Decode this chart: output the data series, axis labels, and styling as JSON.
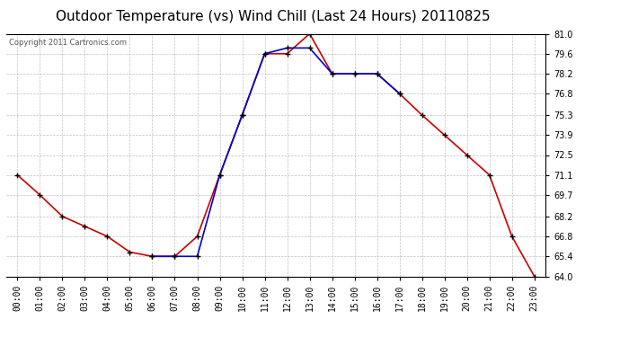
{
  "title": "Outdoor Temperature (vs) Wind Chill (Last 24 Hours) 20110825",
  "copyright": "Copyright 2011 Cartronics.com",
  "hours": [
    "00:00",
    "01:00",
    "02:00",
    "03:00",
    "04:00",
    "05:00",
    "06:00",
    "07:00",
    "08:00",
    "09:00",
    "10:00",
    "11:00",
    "12:00",
    "13:00",
    "14:00",
    "15:00",
    "16:00",
    "17:00",
    "18:00",
    "19:00",
    "20:00",
    "21:00",
    "22:00",
    "23:00"
  ],
  "outdoor_temp": [
    71.1,
    69.7,
    68.2,
    67.5,
    66.8,
    65.7,
    65.4,
    65.4,
    66.8,
    71.1,
    75.3,
    79.6,
    79.6,
    81.0,
    78.2,
    78.2,
    78.2,
    76.8,
    75.3,
    73.9,
    72.5,
    71.1,
    66.8,
    64.0
  ],
  "wind_chill": [
    null,
    null,
    null,
    null,
    null,
    null,
    65.4,
    65.4,
    65.4,
    71.1,
    75.3,
    79.6,
    80.0,
    80.0,
    78.2,
    78.2,
    78.2,
    76.8,
    null,
    null,
    null,
    null,
    null,
    null
  ],
  "temp_color": "#cc0000",
  "wind_color": "#0000cc",
  "marker": "+",
  "marker_color": "#000000",
  "bg_color": "#ffffff",
  "plot_bg_color": "#ffffff",
  "grid_color": "#c0c0c0",
  "ylim": [
    64.0,
    81.0
  ],
  "yticks": [
    64.0,
    65.4,
    66.8,
    68.2,
    69.7,
    71.1,
    72.5,
    73.9,
    75.3,
    76.8,
    78.2,
    79.6,
    81.0
  ],
  "title_fontsize": 11,
  "tick_fontsize": 7,
  "copyright_fontsize": 6
}
